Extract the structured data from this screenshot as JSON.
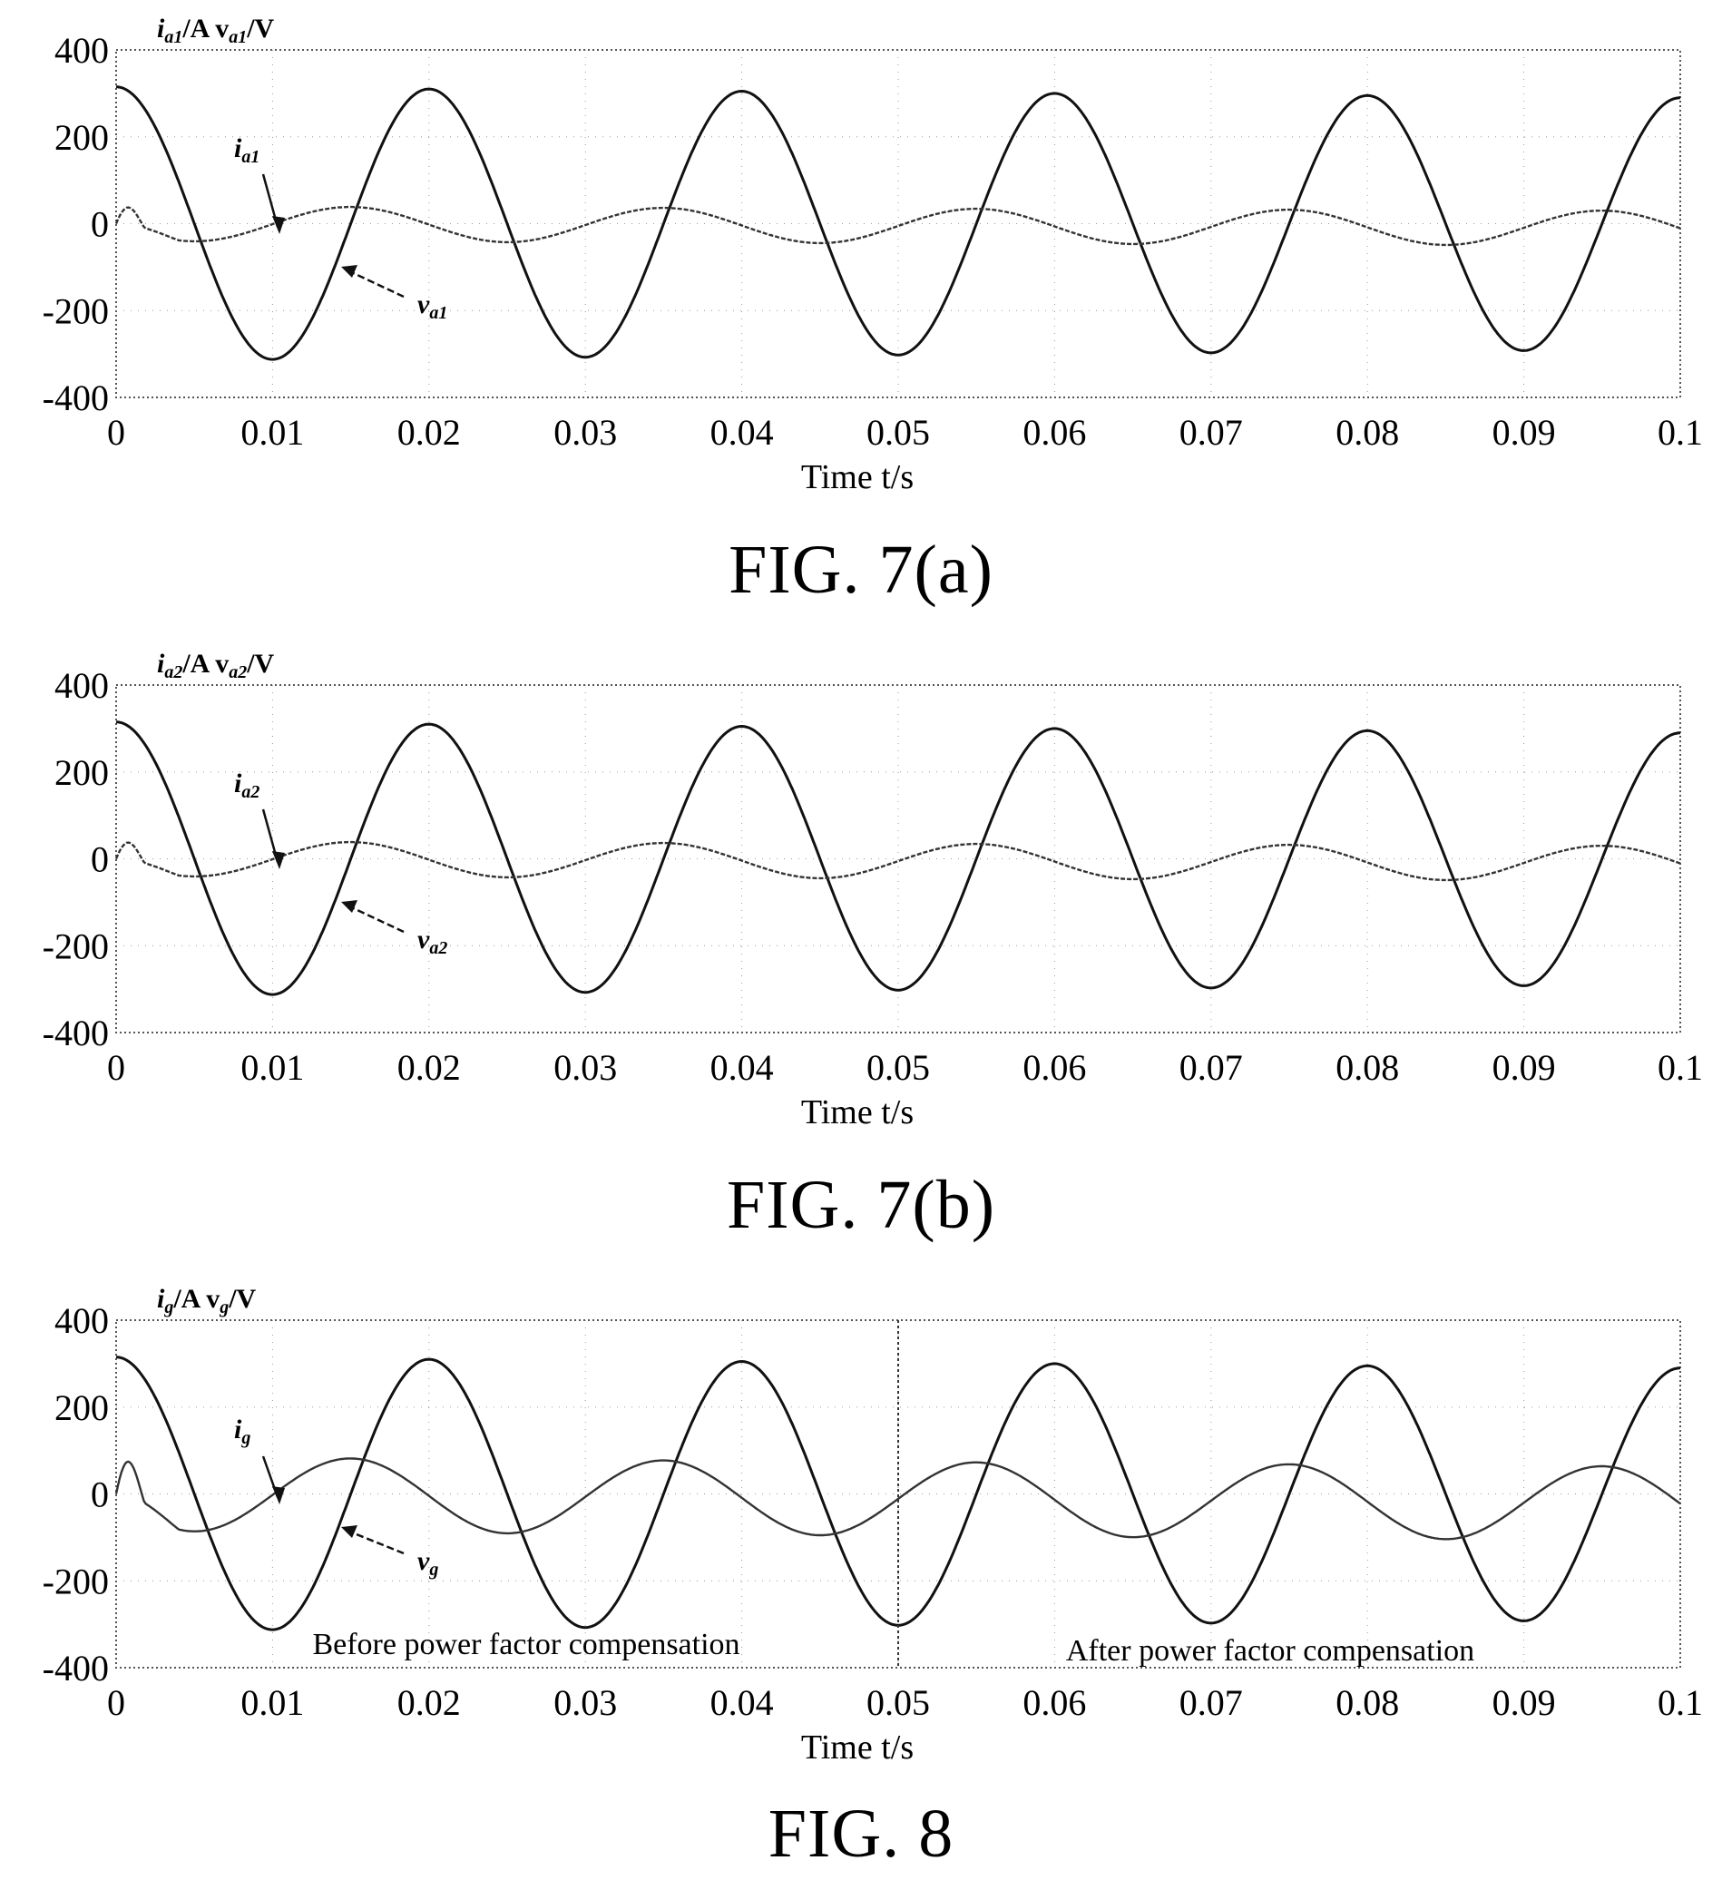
{
  "charts": [
    {
      "caption": "FIG. 7(a)",
      "ylabel_main": "i",
      "ylabel_sub": "a1",
      "ylabel_mid": "/A v",
      "ylabel_sub2": "a1",
      "ylabel_tail": "/V",
      "xlabel": "Time t/s",
      "label_i": "i",
      "label_i_sub": "a1",
      "label_v": "v",
      "label_v_sub": "a1"
    },
    {
      "caption": "FIG. 7(b)",
      "ylabel_main": "i",
      "ylabel_sub": "a2",
      "ylabel_mid": "/A v",
      "ylabel_sub2": "a2",
      "ylabel_tail": "/V",
      "xlabel": "Time t/s",
      "label_i": "i",
      "label_i_sub": "a2",
      "label_v": "v",
      "label_v_sub": "a2"
    },
    {
      "caption": "FIG. 8",
      "ylabel_main": "i",
      "ylabel_sub": "g",
      "ylabel_mid": "/A v",
      "ylabel_sub2": "g",
      "ylabel_tail": "/V",
      "xlabel": "Time t/s",
      "label_i": "i",
      "label_i_sub": "g",
      "label_v": "v",
      "label_v_sub": "g",
      "note_before": "Before power factor compensation",
      "note_after": "After power factor compensation"
    }
  ],
  "chart_data": [
    {
      "type": "line",
      "x_ticks": [
        "0",
        "0.01",
        "0.02",
        "0.03",
        "0.04",
        "0.05",
        "0.06",
        "0.07",
        "0.08",
        "0.09",
        "0.1"
      ],
      "y_ticks": [
        "400",
        "200",
        "0",
        "-200",
        "-400"
      ],
      "xlim": [
        0,
        0.1
      ],
      "ylim": [
        -400,
        400
      ],
      "grid": "dotted",
      "frequency_hz": 50,
      "series": [
        {
          "name": "v",
          "role": "voltage",
          "amplitude": 315,
          "phase": "cosine",
          "t_end": 0.1
        },
        {
          "name": "i",
          "role": "current",
          "amplitude": 40,
          "phase": "cosine, 90° lagging",
          "initial_peak": 50
        }
      ]
    },
    {
      "type": "line",
      "x_ticks": [
        "0",
        "0.01",
        "0.02",
        "0.03",
        "0.04",
        "0.05",
        "0.06",
        "0.07",
        "0.08",
        "0.09",
        "0.1"
      ],
      "y_ticks": [
        "400",
        "200",
        "0",
        "-200",
        "-400"
      ],
      "xlim": [
        0,
        0.1
      ],
      "ylim": [
        -400,
        400
      ],
      "grid": "dotted",
      "frequency_hz": 50,
      "series": [
        {
          "name": "v",
          "role": "voltage",
          "amplitude": 315,
          "phase": "cosine",
          "t_end": 0.1
        },
        {
          "name": "i",
          "role": "current",
          "amplitude": 40,
          "phase": "cosine, 90° lagging",
          "initial_peak": 50
        }
      ]
    },
    {
      "type": "line",
      "x_ticks": [
        "0",
        "0.01",
        "0.02",
        "0.03",
        "0.04",
        "0.05",
        "0.06",
        "0.07",
        "0.08",
        "0.09",
        "0.1"
      ],
      "y_ticks": [
        "400",
        "200",
        "0",
        "-200",
        "-400"
      ],
      "xlim": [
        0,
        0.1
      ],
      "ylim": [
        -400,
        400
      ],
      "grid": "dotted",
      "frequency_hz": 50,
      "divider_x": 0.05,
      "series": [
        {
          "name": "v",
          "role": "voltage",
          "amplitude": 315,
          "phase": "cosine",
          "t_end": 0.1
        },
        {
          "name": "i",
          "role": "current",
          "amplitude": 85,
          "phase": "cosine, 90° lagging",
          "initial_peak": 100
        }
      ]
    }
  ]
}
